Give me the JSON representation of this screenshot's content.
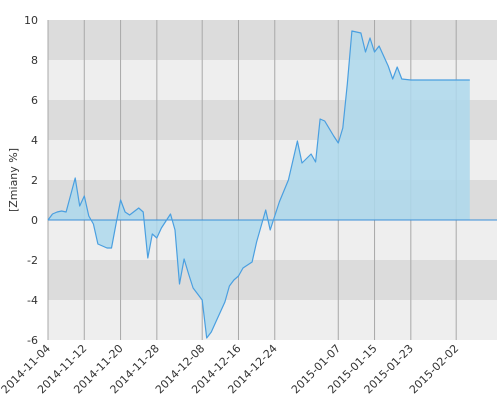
{
  "chart_data": {
    "type": "area",
    "title": "",
    "xlabel": "",
    "ylabel": "[Zmiany %]",
    "ylim": [
      -6,
      10
    ],
    "yticks": [
      -6,
      -4,
      -2,
      0,
      2,
      4,
      6,
      8,
      10
    ],
    "xlim": [
      "2014-11-04",
      "2015-02-11"
    ],
    "xticks": [
      "2014-11-04",
      "2014-11-12",
      "2014-11-20",
      "2014-11-28",
      "2014-12-08",
      "2014-12-16",
      "2014-12-24",
      "2015-01-07",
      "2015-01-15",
      "2015-01-23",
      "2015-02-02"
    ],
    "grid": true,
    "legend": "none",
    "colors": {
      "line": "#4a9fe0",
      "fill": "#add8ec",
      "band_dark": "#dcdcdc",
      "band_light": "#eeeeee",
      "grid": "#a8a8a8",
      "zero_line": "#3a8fd8"
    },
    "series": [
      {
        "x": [
          "2014-11-04",
          "2014-11-05",
          "2014-11-06",
          "2014-11-07",
          "2014-11-08",
          "2014-11-10",
          "2014-11-11",
          "2014-11-12",
          "2014-11-13",
          "2014-11-14",
          "2014-11-15",
          "2014-11-17",
          "2014-11-18",
          "2014-11-19",
          "2014-11-20",
          "2014-11-21",
          "2014-11-22",
          "2014-11-24",
          "2014-11-25",
          "2014-11-26",
          "2014-11-27",
          "2014-11-28",
          "2014-11-29",
          "2014-12-01",
          "2014-12-02",
          "2014-12-03",
          "2014-12-04",
          "2014-12-05",
          "2014-12-06",
          "2014-12-08",
          "2014-12-09",
          "2014-12-10",
          "2014-12-11",
          "2014-12-13",
          "2014-12-14",
          "2014-12-15",
          "2014-12-16",
          "2014-12-17",
          "2014-12-19",
          "2014-12-20",
          "2014-12-22",
          "2014-12-23",
          "2014-12-25",
          "2014-12-27",
          "2014-12-29",
          "2014-12-30",
          "2015-01-01",
          "2015-01-02",
          "2015-01-03",
          "2015-01-04",
          "2015-01-06",
          "2015-01-07",
          "2015-01-08",
          "2015-01-09",
          "2015-01-10",
          "2015-01-12",
          "2015-01-13",
          "2015-01-14",
          "2015-01-15",
          "2015-01-16",
          "2015-01-18",
          "2015-01-19",
          "2015-01-20",
          "2015-01-21",
          "2015-01-23",
          "2015-01-24",
          "2015-01-25",
          "2015-01-27",
          "2015-01-28",
          "2015-01-29",
          "2015-01-30",
          "2015-02-01",
          "2015-02-02",
          "2015-02-03",
          "2015-02-04",
          "2015-02-05"
        ],
        "y": [
          0.0,
          0.3,
          0.4,
          0.45,
          0.4,
          2.1,
          0.7,
          1.2,
          0.2,
          -0.2,
          -1.2,
          -1.4,
          -1.4,
          -0.2,
          1.0,
          0.4,
          0.25,
          0.6,
          0.4,
          -1.9,
          -0.7,
          -0.9,
          -0.4,
          0.3,
          -0.5,
          -3.2,
          -1.95,
          -2.7,
          -3.4,
          -4.0,
          -5.9,
          -5.6,
          -5.1,
          -4.1,
          -3.3,
          -3.0,
          -2.8,
          -2.4,
          -2.1,
          -1.1,
          0.5,
          -0.5,
          0.9,
          2.0,
          3.95,
          2.85,
          3.3,
          2.9,
          5.05,
          4.95,
          4.2,
          3.85,
          4.6,
          6.8,
          9.45,
          9.35,
          8.4,
          9.1,
          8.4,
          8.7,
          7.7,
          7.05,
          7.65,
          7.05,
          7.0,
          7.0,
          7.0,
          7.0,
          7.0,
          7.0,
          7.0,
          7.0,
          7.0,
          7.0,
          7.0,
          7.0
        ]
      }
    ]
  }
}
